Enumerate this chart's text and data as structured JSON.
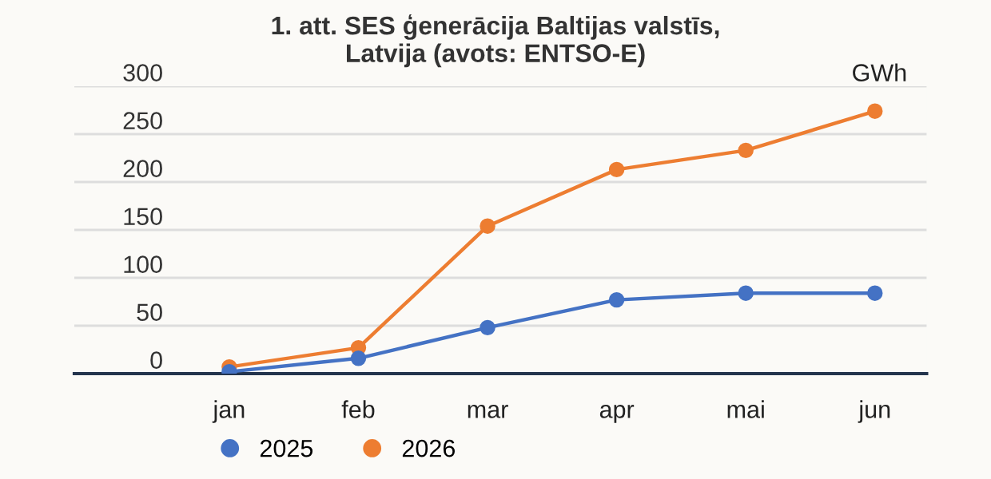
{
  "chart_data": {
    "type": "line",
    "title": "1. att. SES ģenerācija Baltijas valstīs,\nLatvija (avots: ENTSO-E)",
    "ylabel": "GWh",
    "categories": [
      "jan",
      "feb",
      "mar",
      "apr",
      "mai",
      "jun"
    ],
    "series": [
      {
        "name": "2025",
        "color": "#4472c4",
        "values": [
          2,
          16,
          48,
          77,
          84,
          84
        ]
      },
      {
        "name": "2026",
        "color": "#ed7d31",
        "values": [
          7,
          27,
          154,
          213,
          233,
          274
        ]
      }
    ],
    "ylim": [
      0,
      300
    ],
    "yticks": [
      0,
      50,
      100,
      150,
      200,
      250,
      300
    ],
    "grid": "y",
    "legend": "bottom left",
    "marker": "circle",
    "line_style": "solid"
  }
}
